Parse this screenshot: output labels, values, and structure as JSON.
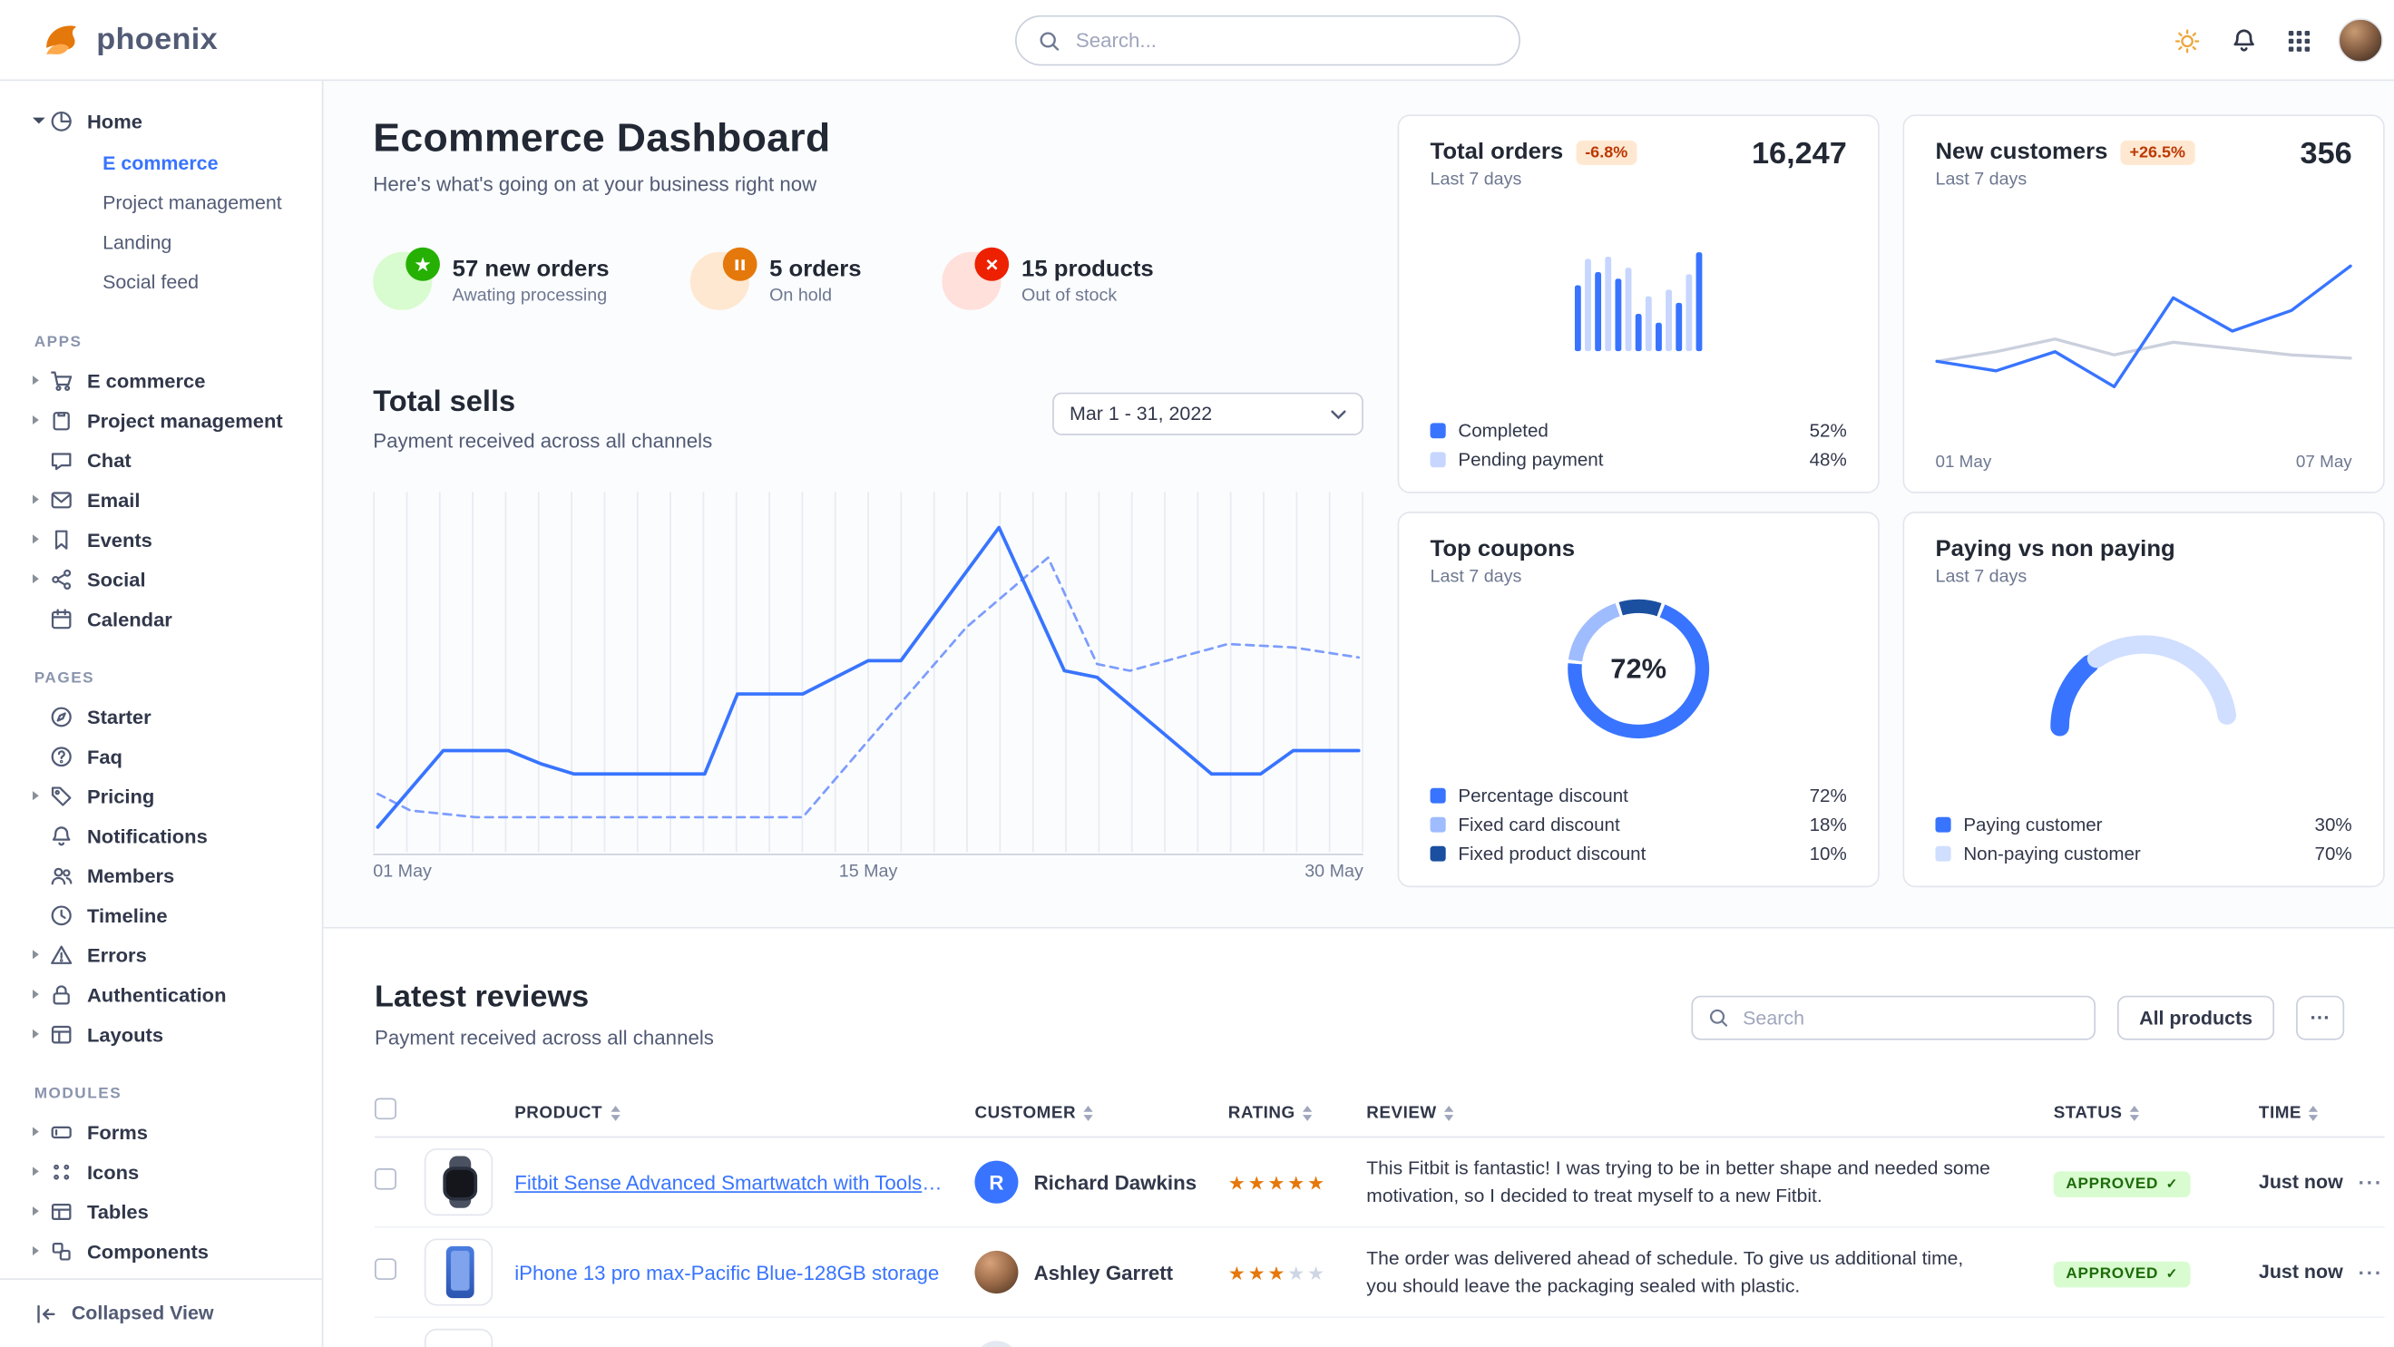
{
  "brand": {
    "name": "phoenix"
  },
  "colors": {
    "primary": "#3874ff",
    "success": "#25b003",
    "warning": "#e5780b",
    "danger": "#ed2000",
    "border": "#e3e6ed",
    "heading": "#222834",
    "muted": "#6e7891",
    "badge_warn_bg": "#ffe8d1",
    "badge_warn_text": "#bc3803",
    "approved_bg": "#d9fbd0",
    "approved_text": "#1c6c09"
  },
  "header": {
    "search_placeholder": "Search..."
  },
  "sidebar": {
    "home": {
      "label": "Home",
      "items": [
        {
          "label": "E commerce",
          "active": true
        },
        {
          "label": "Project management"
        },
        {
          "label": "Landing"
        },
        {
          "label": "Social feed"
        }
      ]
    },
    "sections": [
      {
        "title": "APPS",
        "items": [
          {
            "label": "E commerce",
            "icon": "cart",
            "expandable": true
          },
          {
            "label": "Project management",
            "icon": "clipboard",
            "expandable": true
          },
          {
            "label": "Chat",
            "icon": "chat",
            "expandable": false
          },
          {
            "label": "Email",
            "icon": "mail",
            "expandable": true
          },
          {
            "label": "Events",
            "icon": "bookmark",
            "expandable": true
          },
          {
            "label": "Social",
            "icon": "share",
            "expandable": true
          },
          {
            "label": "Calendar",
            "icon": "calendar",
            "expandable": false
          }
        ]
      },
      {
        "title": "PAGES",
        "items": [
          {
            "label": "Starter",
            "icon": "compass",
            "expandable": false
          },
          {
            "label": "Faq",
            "icon": "question",
            "expandable": false
          },
          {
            "label": "Pricing",
            "icon": "tag",
            "expandable": true
          },
          {
            "label": "Notifications",
            "icon": "bell",
            "expandable": false
          },
          {
            "label": "Members",
            "icon": "users",
            "expandable": false
          },
          {
            "label": "Timeline",
            "icon": "clock",
            "expandable": false
          },
          {
            "label": "Errors",
            "icon": "alert",
            "expandable": true
          },
          {
            "label": "Authentication",
            "icon": "lock",
            "expandable": true
          },
          {
            "label": "Layouts",
            "icon": "layout",
            "expandable": true
          }
        ]
      },
      {
        "title": "MODULES",
        "items": [
          {
            "label": "Forms",
            "icon": "form",
            "expandable": true
          },
          {
            "label": "Icons",
            "icon": "dots",
            "expandable": true
          },
          {
            "label": "Tables",
            "icon": "table",
            "expandable": true
          },
          {
            "label": "Components",
            "icon": "box",
            "expandable": true
          }
        ]
      }
    ],
    "footer": {
      "label": "Collapsed View"
    }
  },
  "page": {
    "title": "Ecommerce Dashboard",
    "subtitle": "Here's what's going on at your business right now"
  },
  "stats": [
    {
      "value": "57 new orders",
      "label": "Awating processing",
      "tone": "success",
      "icon": "star"
    },
    {
      "value": "5 orders",
      "label": "On hold",
      "tone": "warning",
      "icon": "pause"
    },
    {
      "value": "15 products",
      "label": "Out of stock",
      "tone": "danger",
      "icon": "x"
    }
  ],
  "total_sells": {
    "title": "Total sells",
    "subtitle": "Payment received across all channels",
    "range": "Mar 1 - 31, 2022"
  },
  "cards": {
    "total_orders": {
      "title": "Total orders",
      "badge": "-6.8%",
      "period": "Last 7 days",
      "value": "16,247",
      "legend": [
        {
          "label": "Completed",
          "display": "52%",
          "color": "#3874ff"
        },
        {
          "label": "Pending payment",
          "display": "48%",
          "color": "#c7d6ff"
        }
      ]
    },
    "new_customers": {
      "title": "New customers",
      "badge": "+26.5%",
      "period": "Last 7 days",
      "value": "356"
    },
    "top_coupons": {
      "title": "Top coupons",
      "period": "Last 7 days"
    },
    "paying": {
      "title": "Paying vs non paying",
      "period": "Last 7 days"
    }
  },
  "chart_data": [
    {
      "id": "total-sells",
      "type": "line",
      "title": "Total sells",
      "grid": "vertical-daily",
      "x_ticks": [
        "01 May",
        "15 May",
        "30 May"
      ],
      "tmax": 30,
      "ylim": [
        0,
        100
      ],
      "series": [
        {
          "name": "primary",
          "style": "solid",
          "color": "#3874ff",
          "points": [
            [
              0,
              2
            ],
            [
              2,
              25
            ],
            [
              4,
              25
            ],
            [
              5,
              21
            ],
            [
              6,
              18
            ],
            [
              10,
              18
            ],
            [
              11,
              42
            ],
            [
              13,
              42
            ],
            [
              15,
              52
            ],
            [
              16,
              52
            ],
            [
              19,
              92
            ],
            [
              21,
              49
            ],
            [
              22,
              47
            ],
            [
              25.5,
              18
            ],
            [
              27,
              18
            ],
            [
              28,
              25
            ],
            [
              30,
              25
            ]
          ]
        },
        {
          "name": "secondary",
          "style": "dashed",
          "color": "#7d9dfd",
          "points": [
            [
              0,
              12
            ],
            [
              1,
              7
            ],
            [
              3,
              5
            ],
            [
              13,
              5
            ],
            [
              15,
              28
            ],
            [
              18,
              62
            ],
            [
              20.5,
              83
            ],
            [
              22,
              51
            ],
            [
              23,
              49
            ],
            [
              26,
              57
            ],
            [
              28,
              56
            ],
            [
              30,
              53
            ]
          ]
        }
      ]
    },
    {
      "id": "total-orders",
      "type": "bar",
      "ylim": [
        0,
        100
      ],
      "values": [
        60,
        84,
        72,
        86,
        66,
        76,
        34,
        50,
        26,
        56,
        44,
        70,
        90
      ],
      "colors": [
        "#3874ff",
        "#c7d6ff"
      ]
    },
    {
      "id": "new-customers",
      "type": "line",
      "x_ticks": [
        "01 May",
        "07 May"
      ],
      "ylim": [
        0,
        100
      ],
      "series": [
        {
          "name": "primary",
          "style": "solid",
          "color": "#3874ff",
          "values": [
            36,
            30,
            42,
            20,
            76,
            55,
            68,
            96
          ]
        },
        {
          "name": "secondary",
          "style": "solid",
          "color": "#cbd0dd",
          "values": [
            36,
            42,
            50,
            40,
            48,
            44,
            40,
            38
          ]
        }
      ]
    },
    {
      "id": "top-coupons",
      "type": "donut",
      "center_label": "72%",
      "slices": [
        {
          "label": "Percentage discount",
          "value": 72,
          "display": "72%",
          "color": "#3874ff"
        },
        {
          "label": "Fixed card discount",
          "value": 18,
          "display": "18%",
          "color": "#9fbcff"
        },
        {
          "label": "Fixed product discount",
          "value": 10,
          "display": "10%",
          "color": "#1b4fa0"
        }
      ]
    },
    {
      "id": "paying-gauge",
      "type": "gauge",
      "slices": [
        {
          "label": "Paying customer",
          "value": 30,
          "display": "30%",
          "color": "#3874ff"
        },
        {
          "label": "Non-paying customer",
          "value": 70,
          "display": "70%",
          "color": "#d0deff"
        }
      ]
    }
  ],
  "reviews": {
    "title": "Latest reviews",
    "subtitle": "Payment received across all channels",
    "search_placeholder": "Search",
    "filter_label": "All products",
    "columns": [
      "PRODUCT",
      "CUSTOMER",
      "RATING",
      "REVIEW",
      "STATUS",
      "TIME"
    ],
    "rows": [
      {
        "product": "Fitbit Sense Advanced Smartwatch with Tools fo...",
        "product_image": "watch",
        "link_underline": true,
        "customer": "Richard Dawkins",
        "avatar": {
          "kind": "initial",
          "value": "R",
          "color": "#3874ff"
        },
        "rating": 5,
        "review": "This Fitbit is fantastic! I was trying to be in better shape and needed some motivation, so I decided to treat myself to a new Fitbit.",
        "status": "APPROVED",
        "time": "Just now"
      },
      {
        "product": "iPhone 13 pro max-Pacific Blue-128GB storage",
        "product_image": "phone",
        "customer": "Ashley Garrett",
        "avatar": {
          "kind": "photo"
        },
        "rating": 3,
        "review": "The order was delivered ahead of schedule. To give us additional time, you should leave the packaging sealed with plastic.",
        "status": "APPROVED",
        "time": "Just now"
      },
      {
        "partial": true,
        "product_image": "blank",
        "avatar": {
          "kind": "gray"
        }
      }
    ]
  }
}
